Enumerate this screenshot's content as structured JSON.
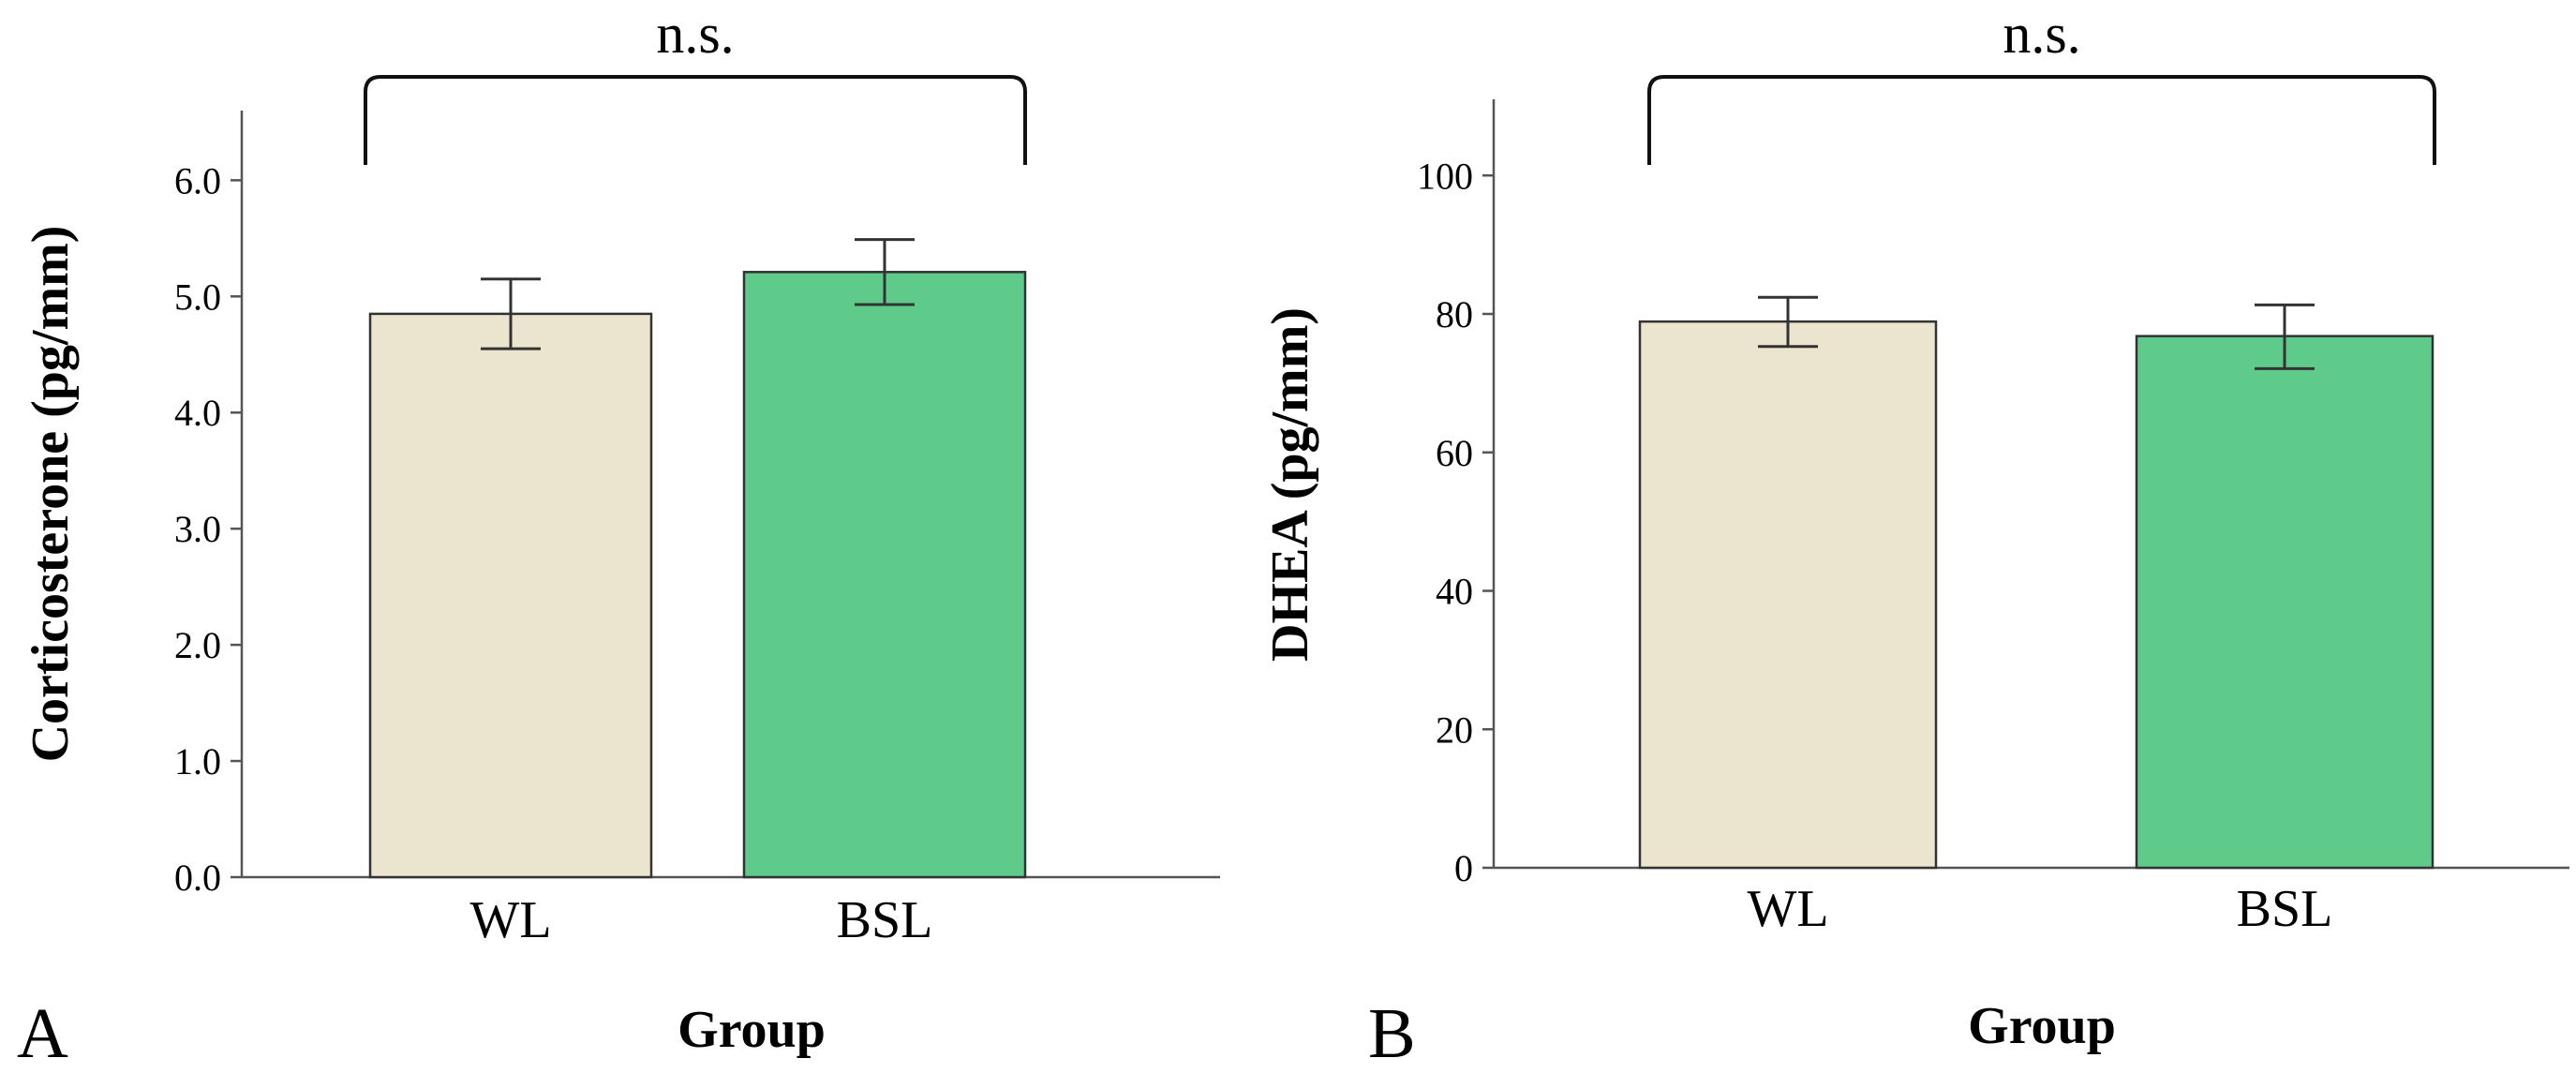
{
  "colors": {
    "WL": "#ebe4cf",
    "BSL": "#5ecb8b"
  },
  "chart_data": [
    {
      "panel": "A",
      "type": "bar",
      "categories": [
        "WL",
        "BSL"
      ],
      "values": [
        4.85,
        5.21
      ],
      "error_low": [
        4.55,
        4.93
      ],
      "error_high": [
        5.15,
        5.49
      ],
      "xlabel": "Group",
      "ylabel": "Corticosterone (pg/mm)",
      "ylim": [
        0,
        6.6
      ],
      "yticks": [
        0,
        1,
        2,
        3,
        4,
        5,
        6
      ],
      "ytick_labels": [
        "0.0",
        "1.0",
        "2.0",
        "3.0",
        "4.0",
        "5.0",
        "6.0"
      ],
      "significance": "n.s.",
      "grid": false
    },
    {
      "panel": "B",
      "type": "bar",
      "categories": [
        "WL",
        "BSL"
      ],
      "values": [
        78.9,
        76.8
      ],
      "error_low": [
        75.3,
        72.1
      ],
      "error_high": [
        82.4,
        81.3
      ],
      "xlabel": "Group",
      "ylabel": "DHEA (pg/mm)",
      "ylim": [
        0,
        111
      ],
      "yticks": [
        0,
        20,
        40,
        60,
        80,
        100
      ],
      "ytick_labels": [
        "0",
        "20",
        "40",
        "60",
        "80",
        "100"
      ],
      "significance": "n.s.",
      "grid": false
    }
  ]
}
